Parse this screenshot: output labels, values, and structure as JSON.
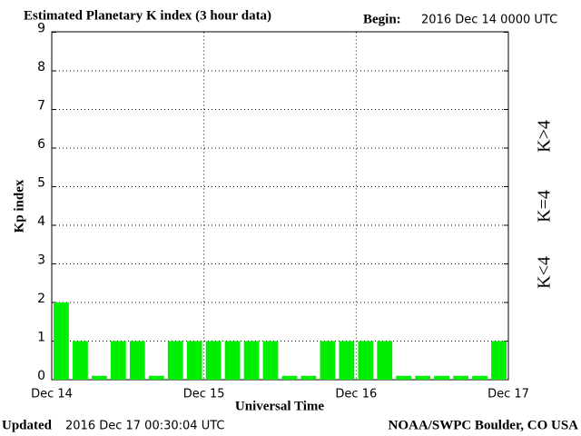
{
  "chart_data": {
    "type": "bar",
    "title": "Estimated Planetary K index (3 hour data)",
    "begin_label": "Begin:",
    "begin": "2016 Dec 14 0000 UTC",
    "x_label": "Universal Time",
    "y_label": "Kp index",
    "updated_label": "Updated",
    "updated": "2016 Dec 17 00:30:04 UTC",
    "source": "NOAA/SWPC Boulder, CO USA",
    "xticks": [
      "Dec 14",
      "Dec 15",
      "Dec 16",
      "Dec 17"
    ],
    "values": [
      2,
      1,
      0.1,
      1,
      1,
      0.1,
      1,
      1,
      1,
      1,
      1,
      1,
      0.1,
      0.1,
      1,
      1,
      1,
      1,
      0.1,
      0.1,
      0.1,
      0.1,
      0.1,
      1
    ],
    "color": "#00ee00",
    "ylim": [
      0,
      9
    ],
    "yticks": [
      0,
      1,
      2,
      3,
      4,
      5,
      6,
      7,
      8,
      9
    ],
    "grid": true,
    "legend": [
      {
        "name": "K>4",
        "color": "#ff2020"
      },
      {
        "name": "K=4",
        "color": "#ffcc00"
      },
      {
        "name": "K<4",
        "color": "#22ee22"
      }
    ]
  }
}
